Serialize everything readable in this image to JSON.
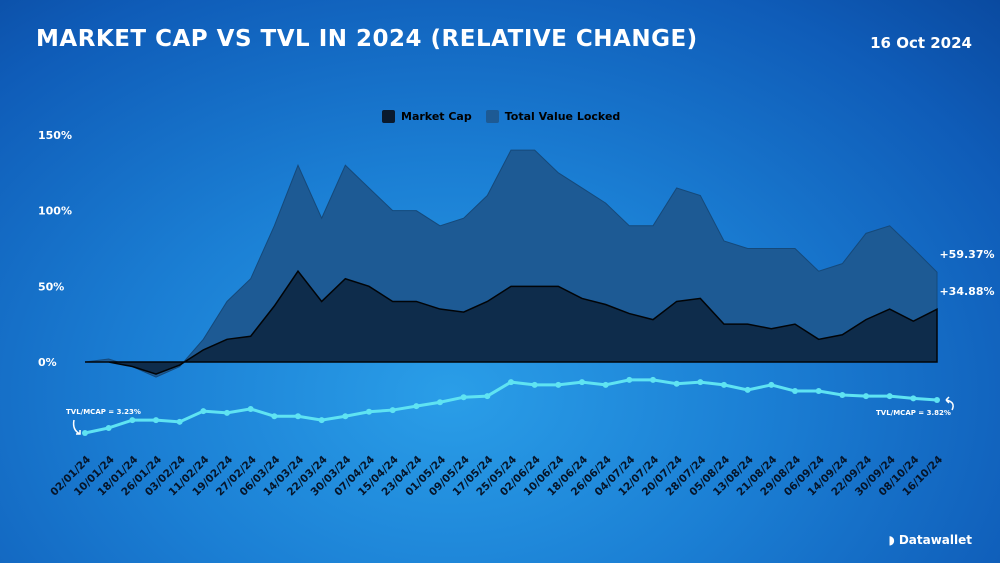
{
  "header": {
    "title": "MARKET CAP VS TVL IN 2024 (RELATIVE CHANGE)",
    "date": "16 Oct 2024"
  },
  "brand": {
    "name": "Datawallet"
  },
  "chart_data": {
    "type": "area",
    "title": "MARKET CAP VS TVL IN 2024 (RELATIVE CHANGE)",
    "legend_position": "top-center",
    "grid": false,
    "ylim": [
      -15,
      150
    ],
    "yticks": [
      "0%",
      "50%",
      "100%",
      "150%"
    ],
    "ytick_values": [
      0,
      50,
      100,
      150
    ],
    "categories": [
      "02/01/24",
      "10/01/24",
      "18/01/24",
      "26/01/24",
      "03/02/24",
      "11/02/24",
      "19/02/24",
      "27/02/24",
      "06/03/24",
      "14/03/24",
      "22/03/24",
      "30/03/24",
      "07/04/24",
      "15/04/24",
      "23/04/24",
      "01/05/24",
      "09/05/24",
      "17/05/24",
      "25/05/24",
      "02/06/24",
      "10/06/24",
      "18/06/24",
      "26/06/24",
      "04/07/24",
      "12/07/24",
      "20/07/24",
      "28/07/24",
      "05/08/24",
      "13/08/24",
      "21/08/24",
      "29/08/24",
      "06/09/24",
      "14/09/24",
      "22/09/24",
      "30/09/24",
      "08/10/24",
      "16/10/24"
    ],
    "series": [
      {
        "name": "Total Value Locked",
        "color": "#1d5a94",
        "values": [
          0,
          2,
          -3,
          -10,
          -3,
          15,
          40,
          55,
          90,
          130,
          95,
          130,
          115,
          100,
          100,
          90,
          95,
          110,
          140,
          140,
          125,
          115,
          105,
          90,
          90,
          115,
          110,
          80,
          75,
          75,
          75,
          60,
          65,
          85,
          90,
          75,
          59.37
        ],
        "end_label": "+59.37%"
      },
      {
        "name": "Market Cap",
        "color": "#0e2a48",
        "values": [
          0,
          0,
          -3,
          -8,
          -2,
          8,
          15,
          17,
          37,
          60,
          40,
          55,
          50,
          40,
          40,
          35,
          33,
          40,
          50,
          50,
          50,
          42,
          38,
          32,
          28,
          40,
          42,
          25,
          25,
          22,
          25,
          15,
          18,
          28,
          35,
          27,
          34.88
        ],
        "end_label": "+34.88%"
      }
    ],
    "ratio": {
      "color": "#5fe3f2",
      "values": [
        3.23,
        3.32,
        3.46,
        3.46,
        3.43,
        3.62,
        3.59,
        3.66,
        3.53,
        3.53,
        3.46,
        3.53,
        3.61,
        3.64,
        3.71,
        3.78,
        3.87,
        3.89,
        4.14,
        4.09,
        4.09,
        4.14,
        4.09,
        4.18,
        4.18,
        4.11,
        4.14,
        4.09,
        4.0,
        4.09,
        3.98,
        3.98,
        3.91,
        3.89,
        3.89,
        3.85,
        3.82
      ],
      "start_label": "TVL/MCAP = 3.23%",
      "end_label": "TVL/MCAP = 3.82%"
    }
  }
}
